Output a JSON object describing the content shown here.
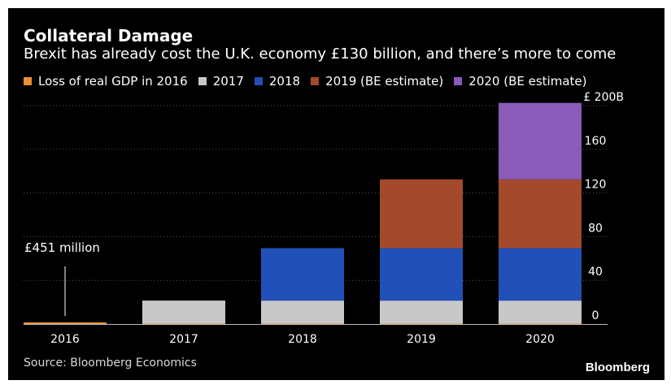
{
  "header": {
    "title": "Collateral Damage",
    "subtitle": "Brexit has already cost the U.K. economy £130 billion, and there’s more to come"
  },
  "footer": {
    "source": "Source: Bloomberg Economics",
    "brand": "Bloomberg"
  },
  "colors": {
    "background": "#000000",
    "text": "#ffffff",
    "grid": "#555555",
    "axis": "#bbbbbb"
  },
  "chart_data": {
    "type": "bar",
    "stacked": true,
    "title": "Collateral Damage",
    "subtitle": "Brexit has already cost the U.K. economy £130 billion, and there’s more to come",
    "categories": [
      "2016",
      "2017",
      "2018",
      "2019",
      "2020"
    ],
    "series": [
      {
        "name": "Loss of real GDP in 2016",
        "color": "#e8913a",
        "values": [
          0.451,
          0.451,
          0.451,
          0.451,
          0.451
        ]
      },
      {
        "name": "2017",
        "color": "#c8c8c8",
        "values": [
          0,
          21,
          21,
          21,
          21
        ]
      },
      {
        "name": "2018",
        "color": "#2150b8",
        "values": [
          0,
          0,
          48,
          48,
          48
        ]
      },
      {
        "name": "2019 (BE estimate)",
        "color": "#a5492d",
        "values": [
          0,
          0,
          0,
          63,
          63
        ]
      },
      {
        "name": "2020 (BE estimate)",
        "color": "#8a5bb8",
        "values": [
          0,
          0,
          0,
          0,
          70
        ]
      }
    ],
    "ylim": [
      0,
      200
    ],
    "yticks": [
      0,
      40,
      80,
      120,
      160,
      200
    ],
    "ytick_labels": [
      "0",
      "40",
      "80",
      "120",
      "160",
      "£ 200B"
    ],
    "y_axis_side": "right",
    "grid": true,
    "legend_position": "top",
    "annotations": [
      {
        "text": "£451 million",
        "category": "2016"
      }
    ]
  }
}
